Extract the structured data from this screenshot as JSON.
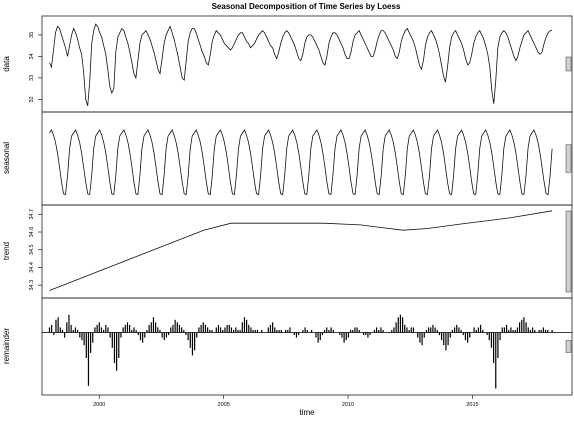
{
  "chart_data": {
    "type": "line",
    "title": "Seasonal Decomposition of Time Series by Loess",
    "xlabel": "time",
    "xlim": [
      1997.7,
      2019.0
    ],
    "x_ticks": [
      2000,
      2005,
      2010,
      2015
    ],
    "start": 1998.0,
    "end": 2018.2,
    "frequency": 12,
    "panels": [
      {
        "name": "data",
        "ylabel": "data",
        "ylim": [
          31.6,
          35.6
        ],
        "yticks": [
          32,
          33,
          34,
          35
        ],
        "values": [
          33.7,
          33.5,
          34.3,
          35.1,
          35.4,
          35.3,
          35.0,
          34.7,
          34.4,
          34.0,
          34.5,
          35.0,
          35.3,
          35.1,
          34.8,
          34.4,
          34.1,
          33.3,
          32.0,
          31.7,
          32.8,
          34.6,
          35.2,
          35.5,
          35.4,
          35.1,
          34.9,
          34.5,
          34.1,
          33.4,
          32.6,
          32.3,
          32.5,
          34.2,
          34.9,
          35.1,
          35.3,
          35.2,
          34.9,
          34.6,
          34.2,
          33.7,
          33.2,
          33.0,
          33.8,
          34.6,
          35.0,
          35.1,
          35.2,
          35.0,
          34.8,
          34.5,
          34.2,
          33.8,
          33.4,
          33.2,
          33.9,
          34.6,
          35.0,
          35.2,
          35.4,
          35.1,
          34.8,
          34.4,
          34.0,
          33.5,
          33.0,
          32.9,
          33.8,
          34.7,
          35.1,
          35.3,
          35.3,
          35.1,
          34.8,
          34.5,
          34.2,
          34.0,
          33.7,
          33.6,
          34.1,
          34.7,
          35.0,
          35.2,
          35.1,
          35.0,
          34.8,
          34.6,
          34.5,
          34.4,
          34.3,
          34.4,
          34.6,
          34.8,
          35.0,
          35.1,
          35.1,
          34.9,
          34.7,
          34.6,
          34.4,
          34.5,
          34.6,
          34.8,
          35.0,
          35.1,
          35.2,
          35.1,
          34.9,
          34.7,
          34.5,
          34.4,
          34.1,
          33.9,
          34.2,
          34.6,
          34.9,
          35.1,
          35.2,
          35.1,
          34.9,
          34.7,
          34.5,
          34.2,
          33.9,
          33.8,
          34.1,
          34.6,
          34.9,
          35.0,
          35.0,
          34.9,
          34.7,
          34.5,
          34.3,
          34.0,
          33.7,
          33.6,
          34.0,
          34.6,
          34.9,
          35.1,
          35.1,
          35.0,
          34.8,
          34.6,
          34.4,
          34.1,
          33.9,
          33.9,
          34.2,
          34.7,
          35.0,
          35.1,
          35.2,
          35.0,
          34.8,
          34.6,
          34.4,
          34.2,
          34.0,
          34.0,
          34.3,
          34.7,
          35.0,
          35.2,
          35.2,
          35.1,
          34.9,
          34.7,
          34.5,
          34.3,
          34.0,
          33.9,
          34.2,
          34.7,
          35.0,
          35.2,
          35.3,
          35.1,
          34.9,
          34.7,
          34.4,
          34.0,
          33.6,
          33.4,
          33.8,
          34.5,
          34.9,
          35.1,
          35.2,
          35.0,
          34.8,
          34.5,
          34.1,
          33.6,
          33.1,
          32.8,
          33.5,
          34.4,
          34.9,
          35.1,
          35.2,
          35.0,
          34.8,
          34.6,
          34.3,
          33.9,
          33.6,
          33.7,
          34.1,
          34.6,
          34.9,
          35.1,
          35.2,
          35.0,
          34.8,
          34.5,
          34.1,
          33.5,
          32.4,
          31.8,
          32.9,
          34.4,
          34.9,
          35.1,
          35.2,
          35.1,
          34.9,
          34.6,
          34.3,
          34.0,
          33.8,
          34.0,
          34.4,
          34.7,
          35.0,
          35.1,
          35.2,
          35.0,
          34.8,
          34.6,
          34.4,
          34.2,
          34.1,
          34.2,
          34.6,
          34.9,
          35.1,
          35.2,
          35.2
        ]
      },
      {
        "name": "seasonal",
        "ylabel": "seasonal",
        "ylim": [
          -1.05,
          0.95
        ],
        "yticks": [],
        "values": [
          0.55,
          0.62,
          0.5,
          0.33,
          0.08,
          -0.25,
          -0.6,
          -0.88,
          -0.9,
          -0.45,
          0.18,
          0.48
        ]
      },
      {
        "name": "trend",
        "ylabel": "trend",
        "ylim": [
          34.25,
          34.73
        ],
        "yticks": [
          34.3,
          34.4,
          34.5,
          34.6,
          34.7
        ],
        "x": [
          1998.0,
          2004.2,
          2005.3,
          2006.5,
          2009.0,
          2010.5,
          2012.2,
          2013.2,
          2014.5,
          2016.5,
          2018.2
        ],
        "values": [
          34.27,
          34.61,
          34.65,
          34.65,
          34.65,
          34.64,
          34.61,
          34.62,
          34.645,
          34.68,
          34.72
        ]
      },
      {
        "name": "remainder",
        "ylabel": "remainder",
        "ylim": [
          -2.3,
          1.2
        ],
        "yticks": [],
        "values": [
          0.2,
          0.3,
          -0.1,
          0.5,
          0.6,
          0.2,
          0.1,
          -0.2,
          0.4,
          0.7,
          0.3,
          0.1,
          0.2,
          0.1,
          -0.2,
          -0.3,
          -0.5,
          -1.0,
          -2.1,
          -0.8,
          -0.4,
          0.2,
          0.3,
          0.4,
          0.2,
          0.1,
          0.3,
          0.2,
          -0.2,
          -0.6,
          -1.2,
          -1.5,
          -1.0,
          -0.2,
          0.2,
          0.3,
          0.4,
          0.3,
          0.1,
          0.2,
          0.1,
          -0.1,
          -0.3,
          -0.4,
          -0.2,
          0.1,
          0.3,
          0.4,
          0.6,
          0.4,
          0.2,
          0.1,
          -0.2,
          -0.3,
          -0.2,
          -0.1,
          0.2,
          0.3,
          0.5,
          0.4,
          0.3,
          0.2,
          0.1,
          -0.1,
          -0.3,
          -0.6,
          -0.9,
          -0.7,
          -0.2,
          0.2,
          0.3,
          0.4,
          0.3,
          0.2,
          0.1,
          0.1,
          0.0,
          0.2,
          0.3,
          0.2,
          0.1,
          0.2,
          0.3,
          0.3,
          0.2,
          0.1,
          0.2,
          0.1,
          0.1,
          0.4,
          0.6,
          0.5,
          0.3,
          0.2,
          0.1,
          0.1,
          0.1,
          0.0,
          0.1,
          0.0,
          0.0,
          0.2,
          0.3,
          0.4,
          0.2,
          0.1,
          0.1,
          0.1,
          0.0,
          0.1,
          0.1,
          0.2,
          0.0,
          -0.1,
          -0.2,
          -0.1,
          0.0,
          0.1,
          0.2,
          0.1,
          0.0,
          0.1,
          0.0,
          -0.2,
          -0.4,
          -0.3,
          -0.1,
          0.1,
          0.2,
          0.1,
          0.2,
          0.1,
          0.0,
          0.0,
          -0.1,
          -0.2,
          -0.4,
          -0.3,
          -0.2,
          0.1,
          0.1,
          0.2,
          0.2,
          0.1,
          0.0,
          -0.1,
          -0.1,
          -0.2,
          -0.1,
          0.0,
          0.1,
          0.2,
          0.1,
          0.2,
          0.1,
          0.0,
          0.0,
          0.0,
          0.1,
          0.2,
          0.4,
          0.6,
          0.7,
          0.6,
          0.3,
          0.2,
          0.1,
          0.2,
          0.2,
          0.0,
          -0.2,
          -0.4,
          -0.5,
          -0.2,
          0.1,
          0.2,
          0.2,
          0.3,
          0.2,
          0.1,
          -0.1,
          -0.3,
          -0.5,
          -0.7,
          -0.5,
          -0.2,
          0.1,
          0.2,
          0.3,
          0.2,
          0.1,
          -0.1,
          -0.3,
          -0.4,
          -0.2,
          0.0,
          0.2,
          0.1,
          0.2,
          0.3,
          0.1,
          0.0,
          -0.1,
          -0.3,
          -0.6,
          -1.2,
          -2.2,
          -1.0,
          -0.3,
          0.2,
          0.2,
          0.3,
          0.1,
          0.2,
          0.1,
          0.1,
          0.2,
          0.4,
          0.5,
          0.6,
          0.4,
          0.2,
          0.1,
          0.2,
          0.1,
          0.0,
          0.1,
          0.1,
          0.2,
          0.1,
          0.1,
          0.0,
          0.1
        ]
      }
    ],
    "range_bars": [
      {
        "panel": "data",
        "height_fraction": 0.17
      },
      {
        "panel": "seasonal",
        "height_fraction": 0.34
      },
      {
        "panel": "trend",
        "height_fraction": 1.0
      },
      {
        "panel": "remainder",
        "height_fraction": 0.14
      }
    ]
  }
}
